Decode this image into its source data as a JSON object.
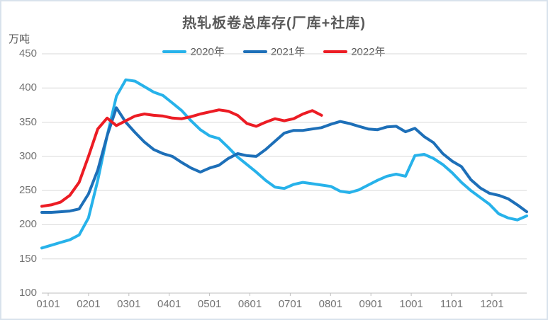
{
  "colors": {
    "grid": "#d9d9d9",
    "axis": "#bfbfbf",
    "title_text": "#595959",
    "tick_text": "#737373",
    "series_2020": "#27b2ea",
    "series_2021": "#1d6fb8",
    "series_2022": "#ec1c24"
  },
  "chart_data": {
    "type": "line",
    "title": "热轧板卷总库存(厂库+社库)",
    "unit_label": "万吨",
    "ylabel": "万吨",
    "xlabel": "",
    "ylim": [
      100,
      450
    ],
    "y_ticks": [
      "450",
      "400",
      "350",
      "300",
      "250",
      "200",
      "150",
      "100"
    ],
    "x_tick_labels": [
      "0101",
      "0201",
      "0301",
      "0401",
      "0501",
      "0601",
      "0701",
      "0801",
      "0901",
      "1001",
      "1101",
      "1201"
    ],
    "grid": "horizontal",
    "legend_position": "top-center",
    "series": [
      {
        "name": "2020年",
        "color": "#27b2ea",
        "values": [
          166,
          170,
          174,
          178,
          185,
          210,
          265,
          330,
          388,
          412,
          410,
          402,
          394,
          389,
          378,
          367,
          352,
          339,
          330,
          326,
          313,
          299,
          288,
          277,
          265,
          255,
          253,
          259,
          262,
          260,
          258,
          256,
          249,
          247,
          251,
          258,
          265,
          271,
          274,
          271,
          301,
          303,
          297,
          288,
          276,
          262,
          250,
          240,
          230,
          216,
          210,
          207,
          213
        ]
      },
      {
        "name": "2021年",
        "color": "#1d6fb8",
        "values": [
          218,
          218,
          219,
          220,
          223,
          245,
          280,
          330,
          371,
          350,
          335,
          321,
          310,
          304,
          300,
          291,
          283,
          277,
          283,
          287,
          297,
          304,
          301,
          300,
          310,
          322,
          334,
          338,
          338,
          340,
          342,
          347,
          351,
          348,
          344,
          340,
          339,
          343,
          344,
          336,
          341,
          329,
          320,
          304,
          293,
          285,
          266,
          254,
          246,
          243,
          238,
          229,
          219
        ]
      },
      {
        "name": "2022年",
        "color": "#ec1c24",
        "values": [
          227,
          229,
          233,
          243,
          262,
          300,
          340,
          356,
          345,
          352,
          359,
          362,
          360,
          359,
          356,
          355,
          358,
          362,
          365,
          368,
          366,
          360,
          348,
          344,
          350,
          355,
          352,
          355,
          362,
          367,
          360
        ]
      }
    ]
  }
}
